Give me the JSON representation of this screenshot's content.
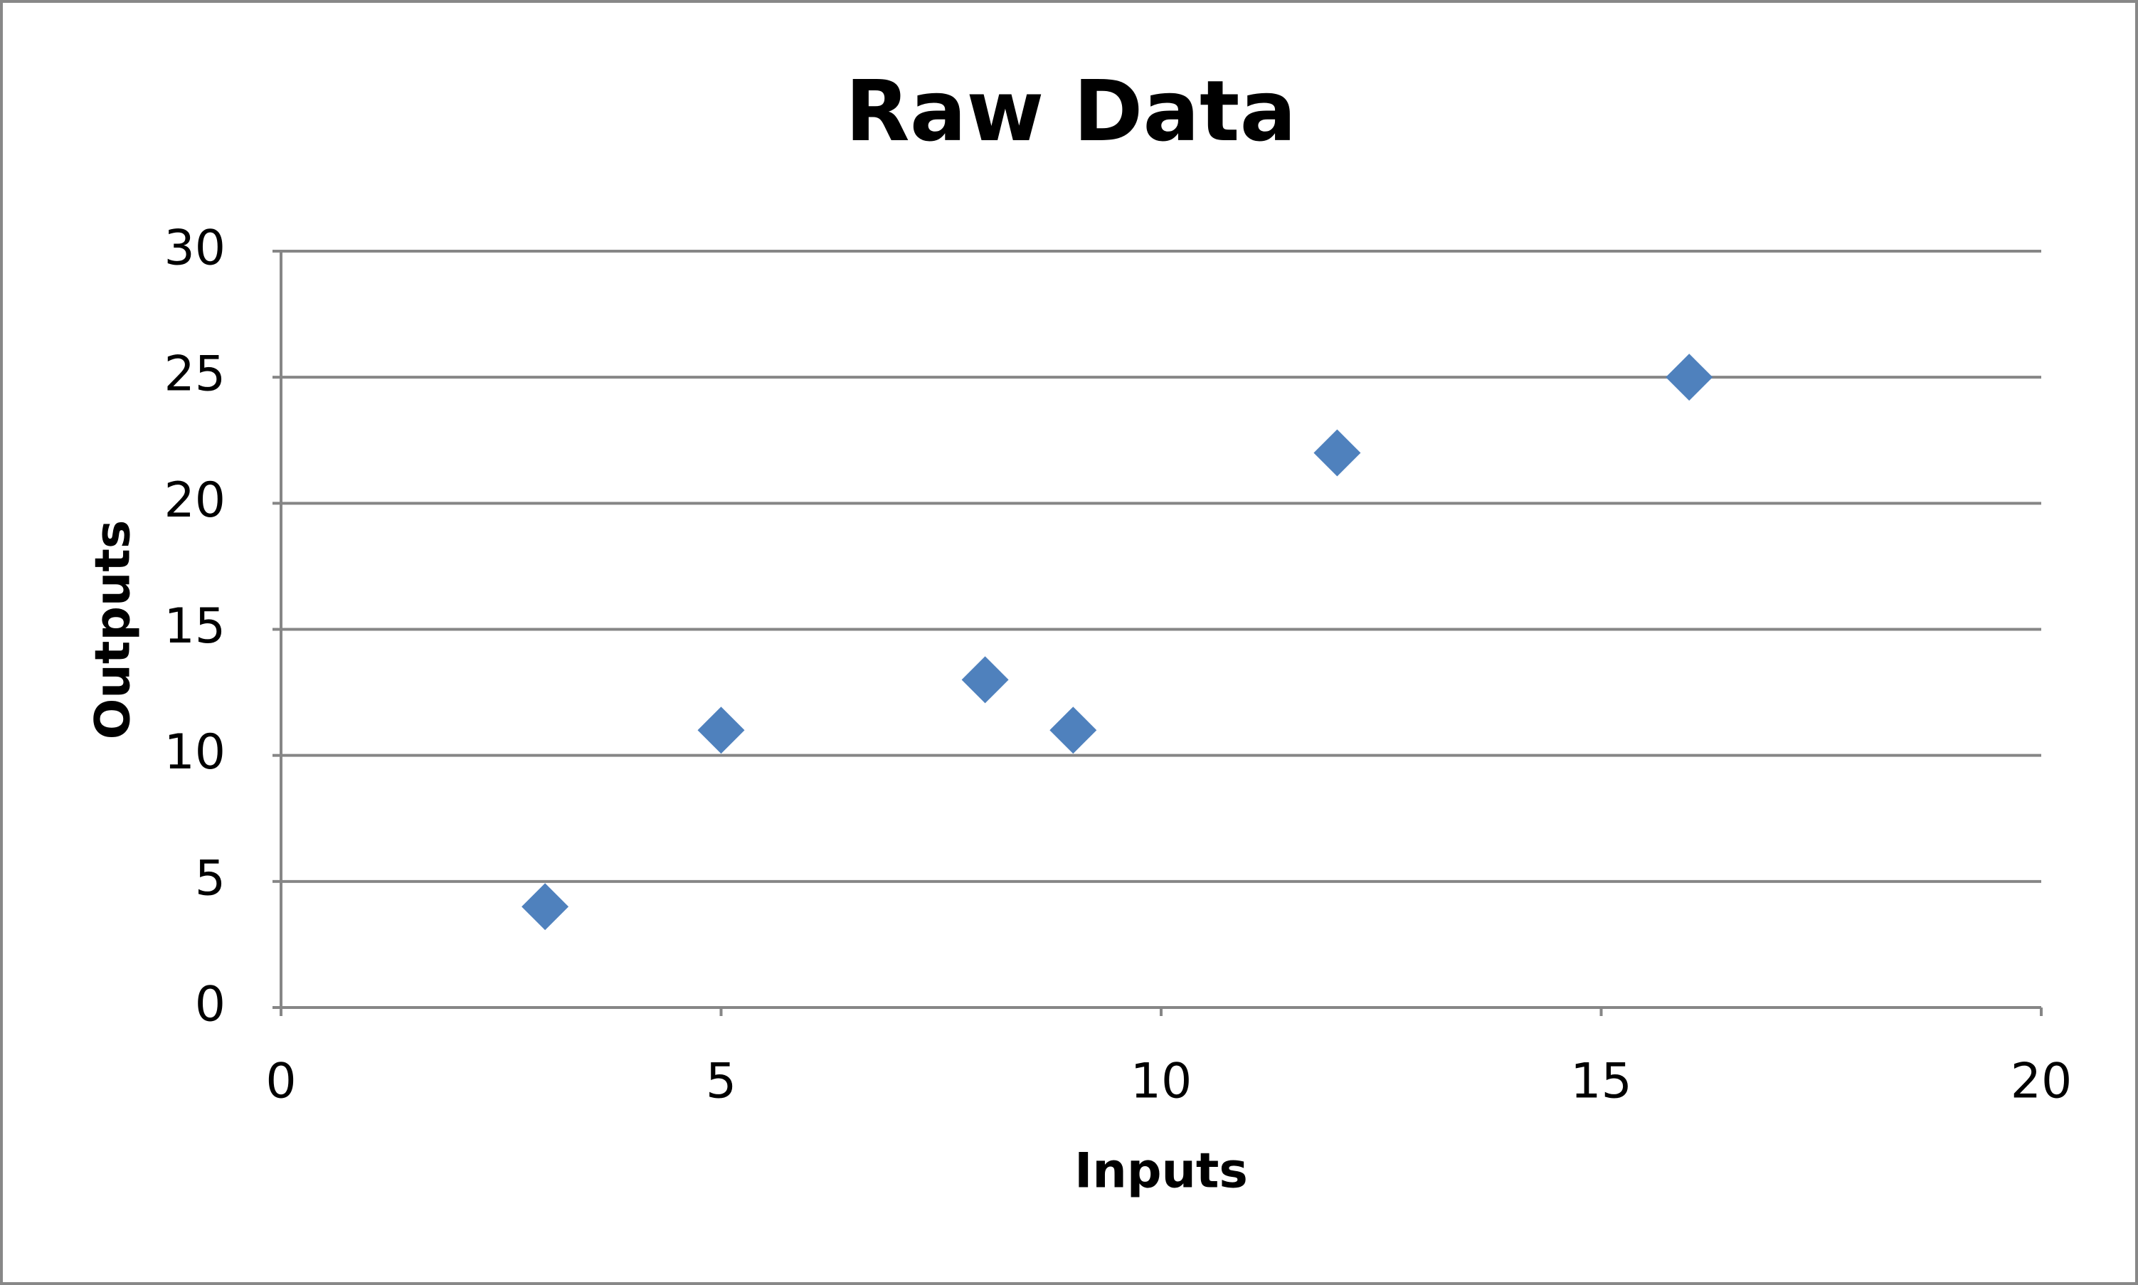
{
  "chart_data": {
    "type": "scatter",
    "title": "Raw Data",
    "x_label": "Inputs",
    "y_label": "Outputs",
    "series": [
      {
        "name": "Outputs",
        "color": "#4f81bd",
        "x": [
          3,
          5,
          8,
          9,
          12,
          16
        ],
        "values": [
          4,
          11,
          13,
          11,
          22,
          25
        ]
      }
    ],
    "xlim": [
      0,
      20
    ],
    "xticks": [
      0,
      5,
      10,
      15,
      20
    ],
    "ylim": [
      0,
      30
    ],
    "yticks": [
      0,
      5,
      10,
      15,
      20,
      25,
      30
    ],
    "grid": true,
    "marker": "diamond"
  }
}
